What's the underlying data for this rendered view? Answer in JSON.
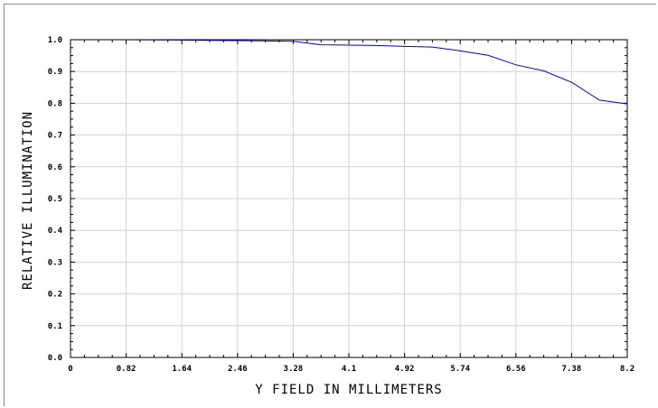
{
  "chart_data": {
    "type": "line",
    "xlabel": "Y FIELD IN MILLIMETERS",
    "ylabel": "RELATIVE ILLUMINATION",
    "xlim": [
      0,
      8.2
    ],
    "ylim": [
      0,
      1.0
    ],
    "x_ticks": [
      "0",
      "0.82",
      "1.64",
      "2.46",
      "3.28",
      "4.1",
      "4.92",
      "5.74",
      "6.56",
      "7.38",
      "8.2"
    ],
    "y_ticks": [
      "0.0",
      "0.1",
      "0.2",
      "0.3",
      "0.4",
      "0.5",
      "0.6",
      "0.7",
      "0.8",
      "0.9",
      "1.0"
    ],
    "grid": true,
    "colors": {
      "line": "#0000dd",
      "grid": "#d3d3d3",
      "axis": "#000000"
    },
    "series": [
      {
        "x": [
          0,
          0.82,
          1.64,
          2.46,
          3.28,
          3.69,
          4.1,
          4.51,
          4.92,
          5.33,
          5.74,
          6.15,
          6.56,
          6.97,
          7.38,
          7.79,
          8.2
        ],
        "values": [
          1.0,
          1.0,
          0.999,
          0.997,
          0.995,
          0.984,
          0.983,
          0.982,
          0.979,
          0.977,
          0.965,
          0.951,
          0.921,
          0.902,
          0.866,
          0.81,
          0.798
        ]
      }
    ]
  }
}
